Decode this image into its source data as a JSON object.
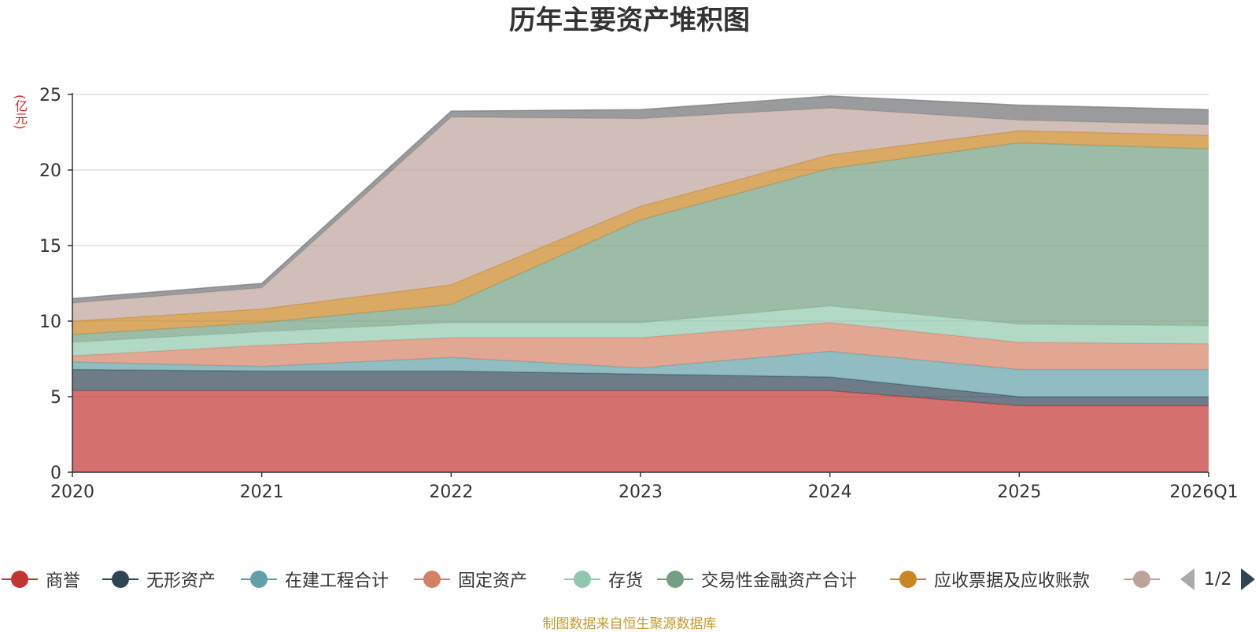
{
  "chart_data": {
    "type": "area",
    "stacked": true,
    "title": "历年主要资产堆积图",
    "ylabel": "(亿元)",
    "xlabel": "",
    "ylim": [
      0,
      25
    ],
    "yticks": [
      0,
      5,
      10,
      15,
      20,
      25
    ],
    "categories": [
      "2020",
      "2021",
      "2022",
      "2023",
      "2024",
      "2025",
      "2026Q1"
    ],
    "series": [
      {
        "name": "商誉",
        "color": "#c23531",
        "values": [
          5.4,
          5.4,
          5.4,
          5.4,
          5.4,
          4.4,
          4.4
        ]
      },
      {
        "name": "无形资产",
        "color": "#2f4554",
        "values": [
          1.4,
          1.3,
          1.3,
          1.1,
          0.9,
          0.6,
          0.6
        ]
      },
      {
        "name": "在建工程合计",
        "color": "#61a0a8",
        "values": [
          0.5,
          0.3,
          0.9,
          0.4,
          1.7,
          1.8,
          1.8
        ]
      },
      {
        "name": "固定资产",
        "color": "#d48265",
        "values": [
          0.4,
          1.4,
          1.3,
          2.0,
          1.9,
          1.8,
          1.7
        ]
      },
      {
        "name": "存货",
        "color": "#91c7ae",
        "values": [
          0.9,
          0.9,
          1.0,
          1.0,
          1.1,
          1.2,
          1.2
        ]
      },
      {
        "name": "交易性金融资产合计",
        "color": "#749f83",
        "values": [
          0.5,
          0.6,
          1.2,
          6.8,
          9.1,
          12.0,
          11.7
        ]
      },
      {
        "name": "应收票据及应收账款",
        "color": "#ca8622",
        "values": [
          0.9,
          0.9,
          1.3,
          0.9,
          0.9,
          0.8,
          0.9
        ]
      },
      {
        "name": "",
        "color": "#bda29a",
        "values": [
          1.2,
          1.4,
          11.1,
          5.8,
          3.1,
          0.7,
          0.7
        ]
      },
      {
        "name": "",
        "color": "#6e7074",
        "values": [
          0.3,
          0.3,
          0.4,
          0.6,
          0.8,
          1.0,
          1.0
        ]
      }
    ],
    "grid": true,
    "legend_position": "bottom"
  },
  "legend": {
    "page_indicator": "1/2",
    "items": [
      {
        "label": "商誉",
        "color": "#c23531"
      },
      {
        "label": "无形资产",
        "color": "#2f4554"
      },
      {
        "label": "在建工程合计",
        "color": "#61a0a8"
      },
      {
        "label": "固定资产",
        "color": "#d48265"
      },
      {
        "label": "存货",
        "color": "#91c7ae"
      },
      {
        "label": "交易性金融资产合计",
        "color": "#749f83"
      },
      {
        "label": "应收票据及应收账款",
        "color": "#ca8622"
      },
      {
        "label": "",
        "color": "#bda29a"
      }
    ]
  },
  "source_note": "制图数据来自恒生聚源数据库"
}
